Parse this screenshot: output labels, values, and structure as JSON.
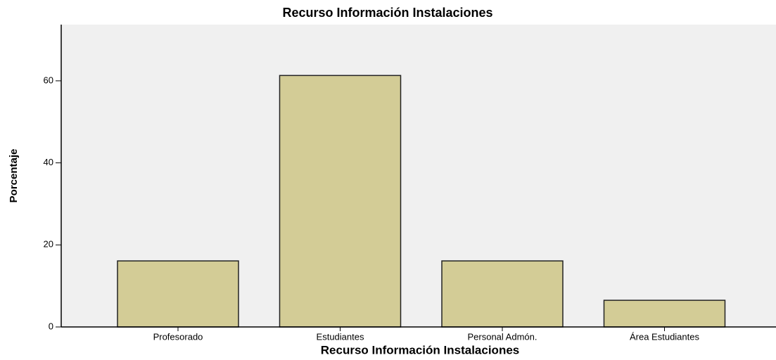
{
  "chart_data": {
    "type": "bar",
    "title": "Recurso Información Instalaciones",
    "x_label": "Recurso Información Instalaciones",
    "y_label": "Porcentaje",
    "categories": [
      "Profesorado",
      "Estudiantes",
      "Personal Admón.",
      "Área Estudiantes"
    ],
    "values": [
      16.1,
      61.3,
      16.1,
      6.5
    ],
    "color": "#d3cc96",
    "ylim": [
      0,
      73.7
    ],
    "yticks": [
      0,
      20,
      40,
      60
    ],
    "grid": false
  }
}
